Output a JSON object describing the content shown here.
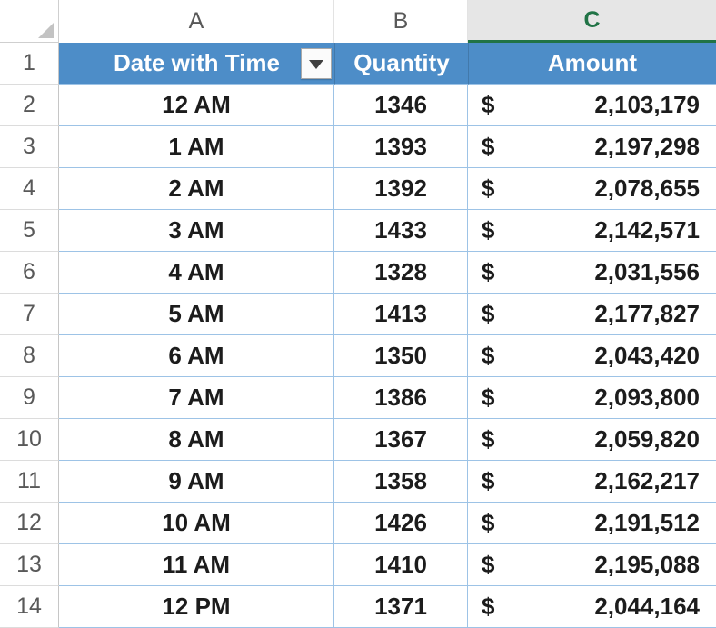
{
  "colors": {
    "header_blue": "#4d8dc8",
    "header_text": "#ffffff",
    "grid_blue": "#9dc3e6",
    "accent_green": "#217346",
    "selected_col_bg": "#e6e6e6",
    "heading_gray": "#595959",
    "data_text": "#1c1c1c"
  },
  "column_headers": {
    "a": "A",
    "b": "B",
    "c": "C",
    "selected_column": "C"
  },
  "row_numbers": [
    "1",
    "2",
    "3",
    "4",
    "5",
    "6",
    "7",
    "8",
    "9",
    "10",
    "11",
    "12",
    "13",
    "14"
  ],
  "table": {
    "headers": [
      {
        "label": "Date with Time",
        "has_filter": true
      },
      {
        "label": "Quantity",
        "has_filter": false
      },
      {
        "label": "Amount",
        "has_filter": false
      }
    ],
    "currency_symbol": "$",
    "rows": [
      {
        "row": "2",
        "time": "12 AM",
        "quantity": "1346",
        "amount": "2,103,179"
      },
      {
        "row": "3",
        "time": "1 AM",
        "quantity": "1393",
        "amount": "2,197,298"
      },
      {
        "row": "4",
        "time": "2 AM",
        "quantity": "1392",
        "amount": "2,078,655"
      },
      {
        "row": "5",
        "time": "3 AM",
        "quantity": "1433",
        "amount": "2,142,571"
      },
      {
        "row": "6",
        "time": "4 AM",
        "quantity": "1328",
        "amount": "2,031,556"
      },
      {
        "row": "7",
        "time": "5 AM",
        "quantity": "1413",
        "amount": "2,177,827"
      },
      {
        "row": "8",
        "time": "6 AM",
        "quantity": "1350",
        "amount": "2,043,420"
      },
      {
        "row": "9",
        "time": "7 AM",
        "quantity": "1386",
        "amount": "2,093,800"
      },
      {
        "row": "10",
        "time": "8 AM",
        "quantity": "1367",
        "amount": "2,059,820"
      },
      {
        "row": "11",
        "time": "9 AM",
        "quantity": "1358",
        "amount": "2,162,217"
      },
      {
        "row": "12",
        "time": "10 AM",
        "quantity": "1426",
        "amount": "2,191,512"
      },
      {
        "row": "13",
        "time": "11 AM",
        "quantity": "1410",
        "amount": "2,195,088"
      },
      {
        "row": "14",
        "time": "12 PM",
        "quantity": "1371",
        "amount": "2,044,164"
      }
    ]
  }
}
